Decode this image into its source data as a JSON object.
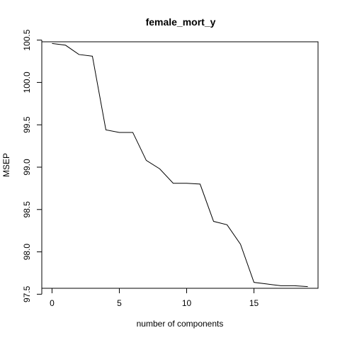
{
  "chart_data": {
    "type": "line",
    "title": "female_mort_y",
    "xlabel": "number of components",
    "ylabel": "MSEP",
    "x": [
      0,
      1,
      2,
      3,
      4,
      5,
      6,
      7,
      8,
      9,
      10,
      11,
      12,
      13,
      14,
      15,
      16,
      17,
      18,
      19
    ],
    "series": [
      {
        "values": [
          100.46,
          100.44,
          100.33,
          100.31,
          99.44,
          99.41,
          99.41,
          99.08,
          98.98,
          98.81,
          98.81,
          98.8,
          98.36,
          98.32,
          98.09,
          97.64,
          97.62,
          97.6,
          97.6,
          97.59
        ]
      }
    ],
    "xlim": [
      -0.76,
      19.76
    ],
    "ylim": [
      97.57,
      100.48
    ],
    "x_ticks": [
      0,
      5,
      10,
      15
    ],
    "x_tick_labels": [
      "0",
      "5",
      "10",
      "15"
    ],
    "y_ticks": [
      97.5,
      98.0,
      98.5,
      99.0,
      99.5,
      100.0,
      100.5
    ],
    "y_tick_labels": [
      "97.5",
      "98.0",
      "98.5",
      "99.0",
      "99.5",
      "100.0",
      "100.5"
    ],
    "grid": false,
    "line_color": "#000000"
  }
}
